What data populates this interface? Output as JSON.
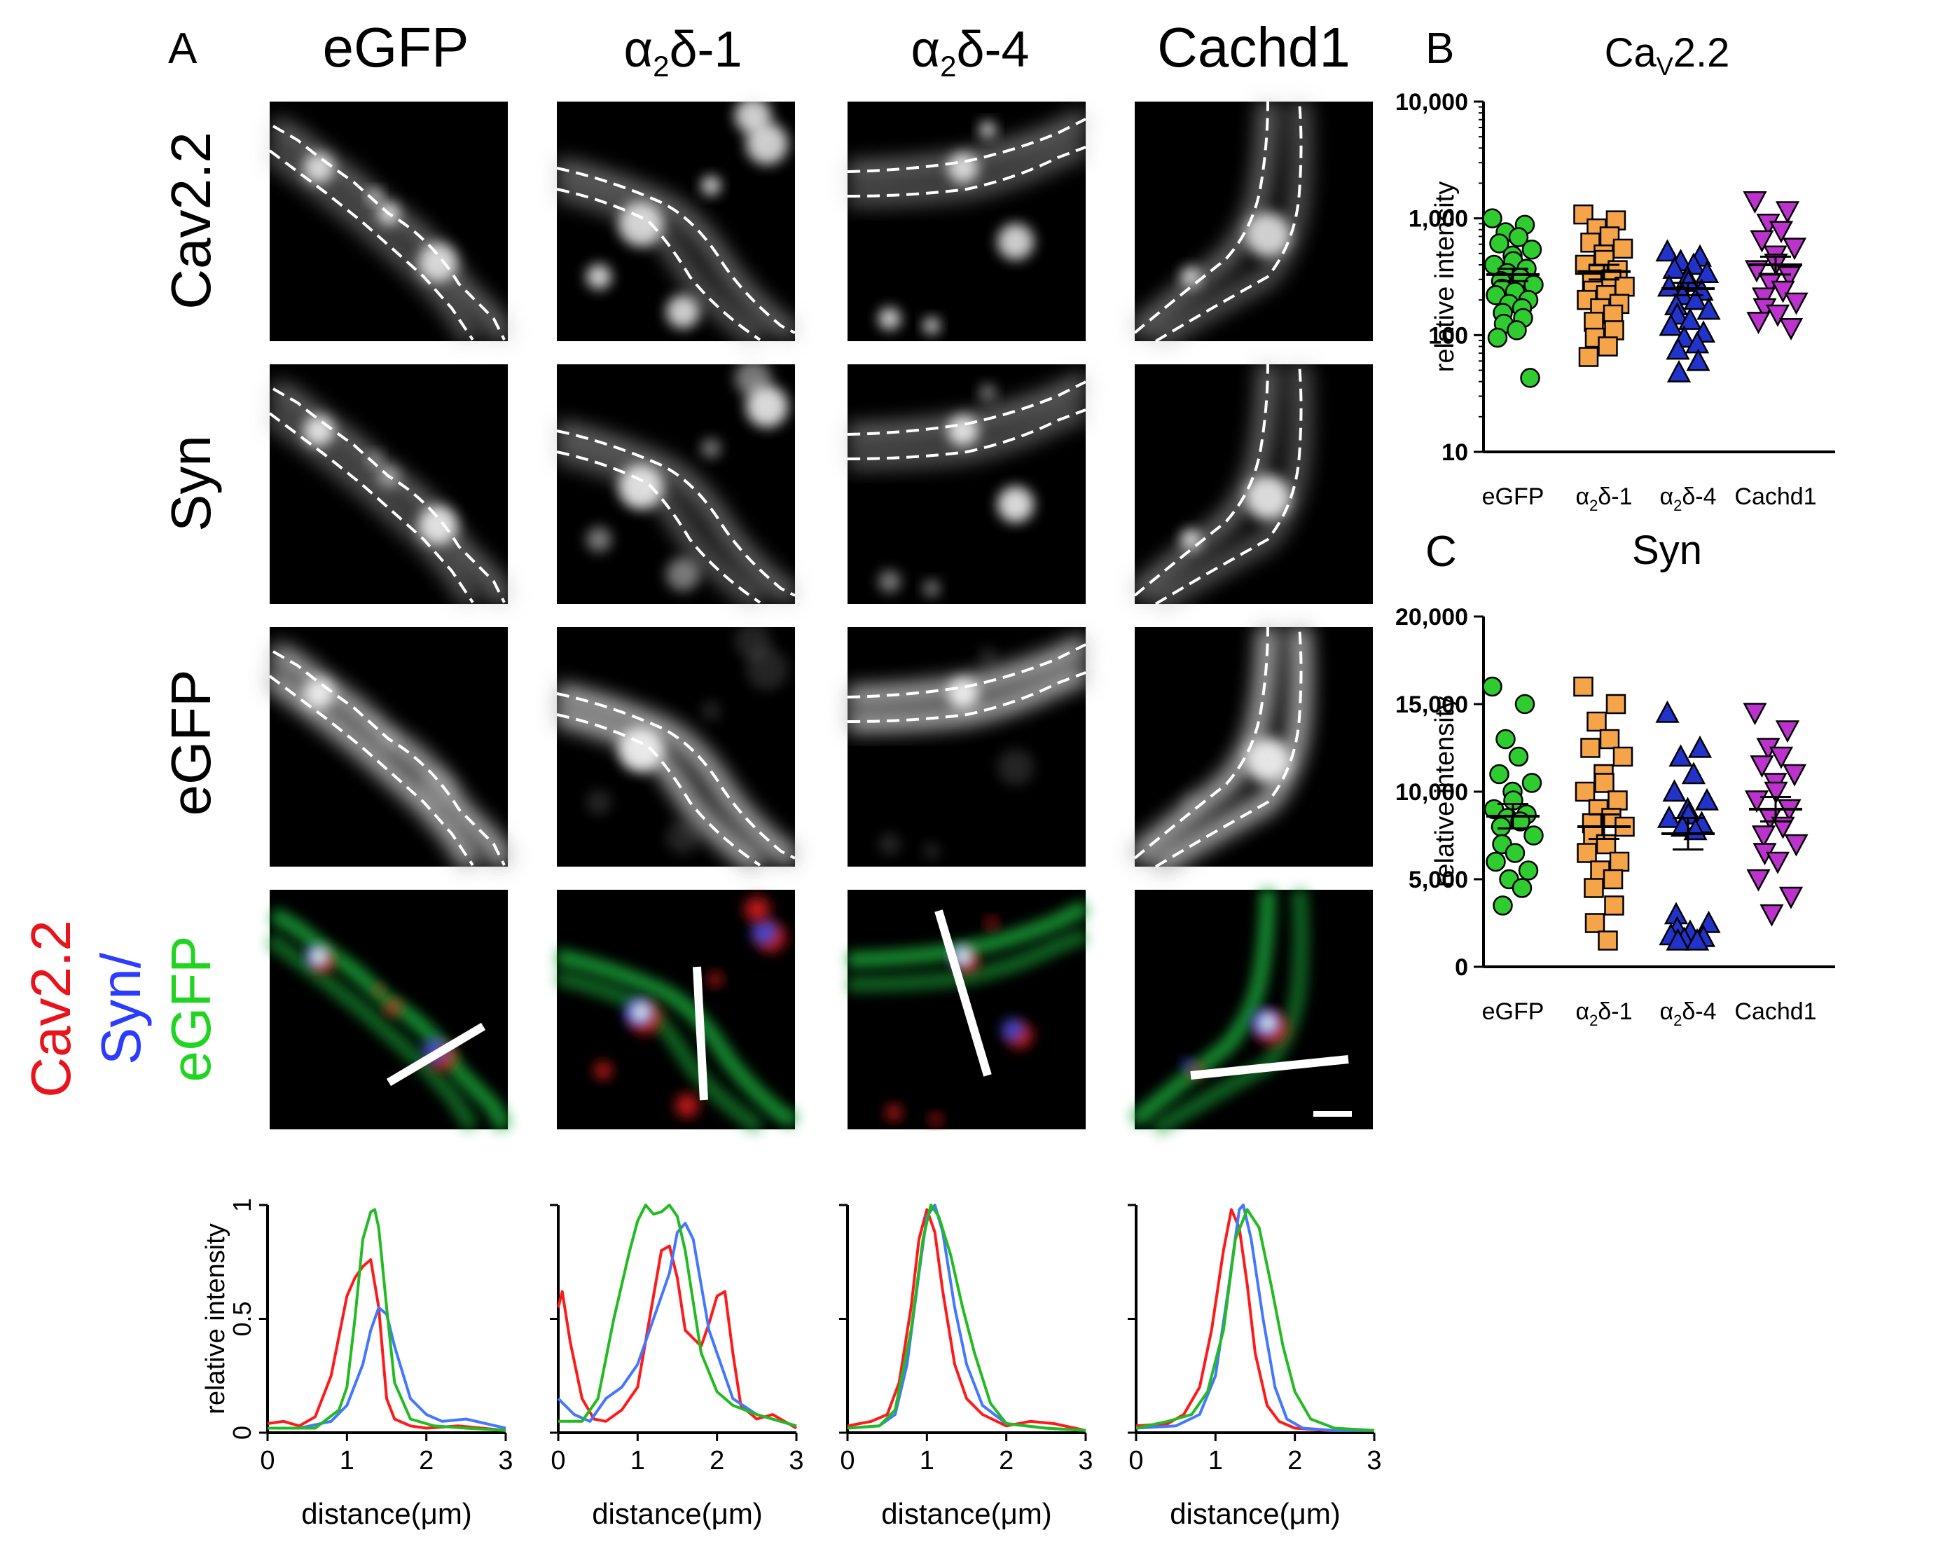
{
  "panel_labels": {
    "a": "A",
    "b": "B",
    "c": "C"
  },
  "column_headers": [
    {
      "base": "eGFP",
      "kind": "plain"
    },
    {
      "prefix": "α",
      "sub": "2",
      "suffix": "δ-1",
      "kind": "greek"
    },
    {
      "prefix": "α",
      "sub": "2",
      "suffix": "δ-4",
      "kind": "greek"
    },
    {
      "base": "Cachd1",
      "kind": "plain"
    }
  ],
  "row_labels": [
    "Cav2.2",
    "Syn",
    "eGFP"
  ],
  "merge_label": {
    "line1": "Cav2.2",
    "line2": "Syn/",
    "line3": "eGFP"
  },
  "colors": {
    "red": "#e8141c",
    "blue": "#2b3cff",
    "green": "#22d422",
    "profile_red": "#ff1a1a",
    "profile_green": "#22bb22",
    "profile_blue": "#4477ff",
    "egfp_marker": "#2ecc2e",
    "a1_marker": "#f5a44a",
    "a4_marker": "#2233cc",
    "cachd1_marker": "#bb33cc"
  },
  "chart_data": [
    {
      "id": "cav22",
      "type": "scatter",
      "title_base": "Ca",
      "title_sub": "V",
      "title_tail": "2.2",
      "ylabel": "relative intensity",
      "yscale": "log",
      "ylim": [
        10,
        10000
      ],
      "yticks": [
        10,
        100,
        1000,
        10000
      ],
      "ytick_labels": [
        "10",
        "100",
        "1,000",
        "10,000"
      ],
      "categories": [
        "eGFP",
        "α2δ-1",
        "α2δ-4",
        "Cachd1"
      ],
      "category_labels": [
        {
          "base": "eGFP"
        },
        {
          "prefix": "α",
          "sub": "2",
          "suffix": "δ-1"
        },
        {
          "prefix": "α",
          "sub": "2",
          "suffix": "δ-4"
        },
        {
          "base": "Cachd1"
        }
      ],
      "series": [
        {
          "name": "eGFP",
          "marker": "circle",
          "mean": 330,
          "sem": 40,
          "values": [
            1000,
            880,
            760,
            690,
            610,
            540,
            480,
            430,
            400,
            370,
            340,
            310,
            290,
            270,
            250,
            235,
            220,
            200,
            185,
            170,
            155,
            140,
            125,
            110,
            95,
            43
          ]
        },
        {
          "name": "α2δ-1",
          "marker": "square",
          "mean": 350,
          "sem": 50,
          "values": [
            1080,
            960,
            820,
            700,
            620,
            550,
            490,
            440,
            400,
            360,
            330,
            300,
            280,
            260,
            240,
            220,
            200,
            185,
            170,
            150,
            130,
            110,
            95,
            80,
            65
          ]
        },
        {
          "name": "α2δ-4",
          "marker": "triangle-up",
          "mean": 250,
          "sem": 30,
          "values": [
            520,
            470,
            430,
            400,
            370,
            340,
            310,
            285,
            260,
            240,
            220,
            200,
            180,
            165,
            150,
            135,
            120,
            105,
            95,
            85,
            75,
            60,
            48
          ]
        },
        {
          "name": "Cachd1",
          "marker": "triangle-down",
          "mean": 400,
          "sem": 70,
          "values": [
            1400,
            1150,
            900,
            780,
            650,
            560,
            480,
            410,
            360,
            320,
            280,
            240,
            210,
            190,
            170,
            150,
            130,
            115
          ]
        }
      ]
    },
    {
      "id": "syn",
      "type": "scatter",
      "title": "Syn",
      "ylabel": "relative intensity",
      "yscale": "linear",
      "ylim": [
        0,
        20000
      ],
      "yticks": [
        0,
        5000,
        10000,
        15000,
        20000
      ],
      "ytick_labels": [
        "0",
        "5,000",
        "10,000",
        "15,000",
        "20,000"
      ],
      "categories": [
        "eGFP",
        "α2δ-1",
        "α2δ-4",
        "Cachd1"
      ],
      "category_labels": [
        {
          "base": "eGFP"
        },
        {
          "prefix": "α",
          "sub": "2",
          "suffix": "δ-1"
        },
        {
          "prefix": "α",
          "sub": "2",
          "suffix": "δ-4"
        },
        {
          "base": "Cachd1"
        }
      ],
      "series": [
        {
          "name": "eGFP",
          "marker": "circle",
          "mean": 8600,
          "sem": 700,
          "values": [
            16000,
            15000,
            13000,
            12000,
            11000,
            10500,
            10000,
            9500,
            9000,
            8700,
            8500,
            8300,
            8000,
            7500,
            7000,
            6500,
            6000,
            5500,
            5000,
            4500,
            3500
          ]
        },
        {
          "name": "α2δ-1",
          "marker": "square",
          "mean": 8000,
          "sem": 700,
          "values": [
            16000,
            15000,
            14000,
            13000,
            12500,
            12000,
            11000,
            10500,
            10000,
            9500,
            9000,
            8500,
            8200,
            8000,
            7500,
            7000,
            6500,
            6000,
            5500,
            5000,
            4500,
            3500,
            2500,
            1500
          ]
        },
        {
          "name": "α2δ-4",
          "marker": "triangle-up",
          "mean": 7600,
          "sem": 900,
          "values": [
            14500,
            12500,
            12000,
            11000,
            10000,
            9500,
            9000,
            8700,
            8500,
            8200,
            8000,
            7800,
            3000,
            2500,
            2200,
            2000,
            1800,
            1700,
            1600,
            1500,
            1500
          ]
        },
        {
          "name": "Cachd1",
          "marker": "triangle-down",
          "mean": 9000,
          "sem": 700,
          "values": [
            14500,
            13500,
            12500,
            12000,
            11500,
            11000,
            10500,
            10000,
            9500,
            9000,
            8500,
            8000,
            7500,
            7000,
            6500,
            6000,
            5000,
            4000,
            3000
          ]
        }
      ]
    },
    {
      "id": "profile-egfp",
      "type": "line",
      "xlabel": "distance(μm)",
      "ylabel": "relative intensity",
      "xlim": [
        0,
        3
      ],
      "ylim": [
        0,
        1
      ],
      "xtick_labels": [
        "0",
        "1",
        "2",
        "3"
      ],
      "ytick_labels": [
        "0",
        "0.5",
        "1"
      ],
      "series": [
        {
          "name": "Cav2.2",
          "color": "red",
          "x": [
            0,
            0.2,
            0.4,
            0.6,
            0.8,
            1.0,
            1.1,
            1.2,
            1.3,
            1.4,
            1.5,
            1.6,
            1.8,
            2.0,
            2.4,
            3.0
          ],
          "y": [
            0.04,
            0.05,
            0.03,
            0.07,
            0.25,
            0.6,
            0.68,
            0.73,
            0.76,
            0.55,
            0.15,
            0.06,
            0.03,
            0.02,
            0.03,
            0.01
          ]
        },
        {
          "name": "Syn",
          "color": "blue",
          "x": [
            0,
            0.4,
            0.8,
            1.0,
            1.2,
            1.3,
            1.4,
            1.5,
            1.6,
            1.8,
            2.0,
            2.2,
            2.5,
            3.0
          ],
          "y": [
            0.02,
            0.02,
            0.05,
            0.12,
            0.3,
            0.45,
            0.55,
            0.52,
            0.38,
            0.15,
            0.08,
            0.05,
            0.06,
            0.02
          ]
        },
        {
          "name": "eGFP",
          "color": "green",
          "x": [
            0,
            0.6,
            0.9,
            1.0,
            1.1,
            1.2,
            1.3,
            1.35,
            1.4,
            1.5,
            1.6,
            1.8,
            2.1,
            2.5,
            3.0
          ],
          "y": [
            0.02,
            0.02,
            0.1,
            0.2,
            0.5,
            0.85,
            0.97,
            0.98,
            0.9,
            0.55,
            0.22,
            0.06,
            0.03,
            0.02,
            0.01
          ]
        }
      ]
    },
    {
      "id": "profile-a1",
      "type": "line",
      "xlabel": "distance(μm)",
      "xlim": [
        0,
        3
      ],
      "ylim": [
        0,
        1
      ],
      "xtick_labels": [
        "0",
        "1",
        "2",
        "3"
      ],
      "series": [
        {
          "name": "Cav2.2",
          "color": "red",
          "x": [
            0,
            0.05,
            0.15,
            0.3,
            0.45,
            0.6,
            0.8,
            1.0,
            1.2,
            1.3,
            1.4,
            1.5,
            1.6,
            1.8,
            1.9,
            2.0,
            2.1,
            2.2,
            2.3,
            2.5,
            2.7,
            3.0
          ],
          "y": [
            0.55,
            0.62,
            0.4,
            0.15,
            0.06,
            0.05,
            0.1,
            0.2,
            0.6,
            0.8,
            0.82,
            0.68,
            0.45,
            0.38,
            0.48,
            0.6,
            0.62,
            0.35,
            0.12,
            0.06,
            0.08,
            0.02
          ]
        },
        {
          "name": "Syn",
          "color": "blue",
          "x": [
            0,
            0.2,
            0.4,
            0.6,
            0.8,
            1.0,
            1.2,
            1.4,
            1.5,
            1.6,
            1.7,
            1.9,
            2.2,
            2.5,
            2.8,
            3.0
          ],
          "y": [
            0.15,
            0.08,
            0.05,
            0.15,
            0.2,
            0.3,
            0.5,
            0.7,
            0.88,
            0.92,
            0.85,
            0.45,
            0.15,
            0.08,
            0.05,
            0.03
          ]
        },
        {
          "name": "eGFP",
          "color": "green",
          "x": [
            0,
            0.3,
            0.5,
            0.7,
            0.9,
            1.0,
            1.1,
            1.2,
            1.3,
            1.4,
            1.5,
            1.6,
            1.8,
            2.0,
            2.2,
            2.5,
            3.0
          ],
          "y": [
            0.05,
            0.05,
            0.15,
            0.5,
            0.8,
            0.93,
            1.0,
            0.96,
            0.97,
            1.0,
            0.95,
            0.8,
            0.35,
            0.18,
            0.12,
            0.08,
            0.03
          ]
        }
      ]
    },
    {
      "id": "profile-a4",
      "type": "line",
      "xlabel": "distance(μm)",
      "xlim": [
        0,
        3
      ],
      "ylim": [
        0,
        1
      ],
      "xtick_labels": [
        "0",
        "1",
        "2",
        "3"
      ],
      "series": [
        {
          "name": "Cav2.2",
          "color": "red",
          "x": [
            0,
            0.3,
            0.5,
            0.65,
            0.8,
            0.9,
            1.0,
            1.1,
            1.2,
            1.35,
            1.5,
            1.7,
            2.0,
            2.3,
            2.6,
            3.0
          ],
          "y": [
            0.03,
            0.05,
            0.08,
            0.22,
            0.55,
            0.85,
            0.98,
            0.88,
            0.62,
            0.3,
            0.15,
            0.08,
            0.03,
            0.05,
            0.04,
            0.01
          ]
        },
        {
          "name": "Syn",
          "color": "blue",
          "x": [
            0,
            0.4,
            0.6,
            0.75,
            0.9,
            1.0,
            1.1,
            1.2,
            1.35,
            1.5,
            1.7,
            2.0,
            2.5,
            3.0
          ],
          "y": [
            0.02,
            0.03,
            0.08,
            0.3,
            0.7,
            0.95,
            1.0,
            0.88,
            0.55,
            0.3,
            0.12,
            0.04,
            0.02,
            0.01
          ]
        },
        {
          "name": "eGFP",
          "color": "green",
          "x": [
            0,
            0.4,
            0.6,
            0.8,
            0.95,
            1.05,
            1.15,
            1.3,
            1.45,
            1.6,
            1.8,
            2.0,
            2.5,
            3.0
          ],
          "y": [
            0.02,
            0.03,
            0.1,
            0.45,
            0.85,
            1.0,
            0.95,
            0.78,
            0.55,
            0.35,
            0.13,
            0.04,
            0.02,
            0.01
          ]
        }
      ]
    },
    {
      "id": "profile-cachd1",
      "type": "line",
      "xlabel": "distance(μm)",
      "xlim": [
        0,
        3
      ],
      "ylim": [
        0,
        1
      ],
      "xtick_labels": [
        "0",
        "1",
        "2",
        "3"
      ],
      "series": [
        {
          "name": "Cav2.2",
          "color": "red",
          "x": [
            0,
            0.4,
            0.6,
            0.8,
            0.95,
            1.1,
            1.2,
            1.3,
            1.4,
            1.5,
            1.65,
            1.8,
            2.0,
            2.4,
            3.0
          ],
          "y": [
            0.03,
            0.04,
            0.08,
            0.2,
            0.45,
            0.8,
            0.98,
            0.9,
            0.65,
            0.35,
            0.12,
            0.05,
            0.02,
            0.01,
            0.01
          ]
        },
        {
          "name": "Syn",
          "color": "blue",
          "x": [
            0,
            0.5,
            0.8,
            1.0,
            1.15,
            1.3,
            1.35,
            1.45,
            1.6,
            1.75,
            1.9,
            2.1,
            2.5,
            3.0
          ],
          "y": [
            0.02,
            0.03,
            0.08,
            0.25,
            0.6,
            0.98,
            1.0,
            0.85,
            0.5,
            0.2,
            0.06,
            0.02,
            0.01,
            0.01
          ]
        },
        {
          "name": "eGFP",
          "color": "green",
          "x": [
            0,
            0.4,
            0.7,
            0.9,
            1.1,
            1.25,
            1.4,
            1.55,
            1.7,
            1.85,
            2.0,
            2.2,
            2.5,
            3.0
          ],
          "y": [
            0.02,
            0.05,
            0.08,
            0.18,
            0.45,
            0.85,
            0.98,
            0.9,
            0.65,
            0.38,
            0.18,
            0.06,
            0.02,
            0.01
          ]
        }
      ]
    }
  ]
}
